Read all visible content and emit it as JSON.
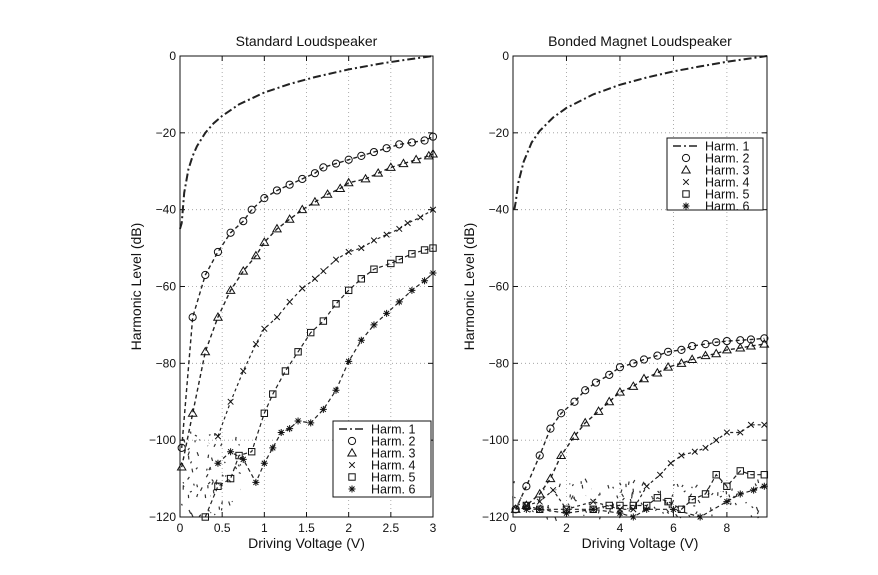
{
  "chart_data": [
    {
      "type": "line",
      "title": "Standard Loudspeaker",
      "xlabel": "Driving Voltage (V)",
      "ylabel": "Harmonic Level (dB)",
      "xlim": [
        0,
        3
      ],
      "ylim": [
        -120,
        0
      ],
      "xticks": [
        0,
        0.5,
        1,
        1.5,
        2,
        2.5,
        3
      ],
      "xtick_labels": [
        "0",
        "0.5",
        "1",
        "1.5",
        "2",
        "2.5",
        "3"
      ],
      "yticks": [
        0,
        -20,
        -40,
        -60,
        -80,
        -100,
        -120
      ],
      "ytick_labels": [
        "0",
        "−20",
        "−40",
        "−60",
        "−80",
        "−100",
        "−120"
      ],
      "grid": true,
      "legend_position": "bottom-right",
      "series": [
        {
          "name": "Harm. 1",
          "marker": "none",
          "x": [
            0.0,
            0.02,
            0.05,
            0.1,
            0.15,
            0.2,
            0.3,
            0.4,
            0.5,
            0.7,
            1.0,
            1.3,
            1.6,
            2.0,
            2.4,
            2.7,
            3.0
          ],
          "y": [
            -45,
            -43.5,
            -35.6,
            -29.5,
            -26,
            -23.5,
            -20,
            -17.5,
            -15.6,
            -12.6,
            -9.5,
            -7.3,
            -5.5,
            -3.5,
            -1.9,
            -0.9,
            0
          ]
        },
        {
          "name": "Harm. 2",
          "marker": "circle",
          "x": [
            0.02,
            0.15,
            0.3,
            0.45,
            0.6,
            0.75,
            0.85,
            1.0,
            1.15,
            1.3,
            1.45,
            1.6,
            1.7,
            1.85,
            2.0,
            2.15,
            2.3,
            2.45,
            2.6,
            2.75,
            2.9,
            3.0
          ],
          "y": [
            -102,
            -68,
            -57,
            -51,
            -46,
            -43,
            -40,
            -37,
            -35,
            -33.5,
            -32,
            -30.5,
            -29,
            -28,
            -27,
            -26,
            -25,
            -24,
            -23,
            -22.5,
            -22,
            -21
          ]
        },
        {
          "name": "Harm. 3",
          "marker": "triangle",
          "x": [
            0.02,
            0.15,
            0.3,
            0.45,
            0.6,
            0.75,
            0.9,
            1.0,
            1.15,
            1.3,
            1.45,
            1.6,
            1.75,
            1.9,
            2.0,
            2.2,
            2.35,
            2.5,
            2.65,
            2.8,
            2.95,
            3.0
          ],
          "y": [
            -107,
            -93,
            -77,
            -68,
            -61,
            -56,
            -52,
            -48.5,
            -45,
            -42.5,
            -40,
            -38,
            -36,
            -34.5,
            -33,
            -32,
            -30.5,
            -29,
            -28,
            -27,
            -26,
            -25.5
          ]
        },
        {
          "name": "Harm. 4",
          "marker": "x",
          "x": [
            0.45,
            0.6,
            0.75,
            0.9,
            1.0,
            1.15,
            1.3,
            1.45,
            1.6,
            1.7,
            1.85,
            2.0,
            2.15,
            2.3,
            2.45,
            2.6,
            2.7,
            2.85,
            3.0
          ],
          "y": [
            -99,
            -90,
            -82,
            -75,
            -71,
            -68,
            -64,
            -60.5,
            -58,
            -56,
            -53,
            -51,
            -50,
            -48,
            -46.5,
            -45,
            -43.5,
            -42,
            -40
          ]
        },
        {
          "name": "Harm. 5",
          "marker": "square",
          "x": [
            0.3,
            0.45,
            0.6,
            0.7,
            0.85,
            1.0,
            1.1,
            1.25,
            1.4,
            1.55,
            1.7,
            1.85,
            2.0,
            2.15,
            2.3,
            2.5,
            2.6,
            2.75,
            2.9,
            3.0
          ],
          "y": [
            -120,
            -112,
            -110,
            -104,
            -103,
            -93,
            -88,
            -82,
            -77,
            -72,
            -69,
            -64.5,
            -61,
            -58,
            -55.5,
            -54,
            -53,
            -51.5,
            -50.5,
            -50
          ]
        },
        {
          "name": "Harm. 6",
          "marker": "asterisk",
          "x": [
            0.45,
            0.6,
            0.75,
            0.9,
            1.0,
            1.1,
            1.2,
            1.3,
            1.4,
            1.55,
            1.7,
            1.85,
            2.0,
            2.15,
            2.3,
            2.45,
            2.6,
            2.75,
            2.9,
            3.0
          ],
          "y": [
            -106,
            -103,
            -105,
            -111,
            -106,
            -102,
            -98,
            -97,
            -95,
            -95.5,
            -92,
            -87,
            -79.5,
            -74,
            -70,
            -67,
            -64,
            -61,
            -58.5,
            -56.5
          ]
        }
      ]
    },
    {
      "type": "line",
      "title": "Bonded Magnet Loudspeaker",
      "xlabel": "Driving Voltage (V)",
      "ylabel": "Harmonic Level (dB)",
      "xlim": [
        0,
        9.5
      ],
      "ylim": [
        -120,
        0
      ],
      "xticks": [
        0,
        2,
        4,
        6,
        8
      ],
      "xtick_labels": [
        "0",
        "2",
        "4",
        "6",
        "8"
      ],
      "yticks": [
        0,
        -20,
        -40,
        -60,
        -80,
        -100,
        -120
      ],
      "ytick_labels": [
        "0",
        "−20",
        "−40",
        "−60",
        "−80",
        "−100",
        "−120"
      ],
      "grid": true,
      "legend_position": "top-right",
      "series": [
        {
          "name": "Harm. 1",
          "marker": "none",
          "x": [
            0.05,
            0.1,
            0.2,
            0.4,
            0.7,
            1.0,
            1.5,
            2.0,
            3.0,
            4.0,
            5.0,
            6.0,
            7.0,
            8.0,
            9.0,
            9.5
          ],
          "y": [
            -40,
            -38,
            -33,
            -27.5,
            -22.5,
            -19.5,
            -16,
            -13.5,
            -10,
            -7.5,
            -5.6,
            -4,
            -2.7,
            -1.5,
            -0.5,
            0
          ]
        },
        {
          "name": "Harm. 2",
          "marker": "circle",
          "x": [
            0.1,
            0.5,
            1.0,
            1.4,
            1.8,
            2.3,
            2.7,
            3.1,
            3.6,
            4.0,
            4.5,
            4.9,
            5.4,
            5.8,
            6.3,
            6.7,
            7.2,
            7.6,
            8.0,
            8.5,
            8.9,
            9.4
          ],
          "y": [
            -118,
            -112,
            -104,
            -97,
            -93,
            -90,
            -87,
            -85,
            -83,
            -81,
            -80,
            -79,
            -78,
            -77,
            -76.5,
            -75.5,
            -75,
            -74.5,
            -74.2,
            -74,
            -73.8,
            -73.5
          ]
        },
        {
          "name": "Harm. 3",
          "marker": "triangle",
          "x": [
            0.1,
            0.5,
            1.0,
            1.4,
            1.8,
            2.3,
            2.7,
            3.2,
            3.6,
            4.0,
            4.5,
            4.9,
            5.4,
            5.8,
            6.3,
            6.7,
            7.2,
            7.6,
            8.0,
            8.5,
            8.9,
            9.4
          ],
          "y": [
            -118,
            -117,
            -114,
            -110,
            -104,
            -99,
            -95.5,
            -92.5,
            -90,
            -87.5,
            -86,
            -84,
            -82.5,
            -81,
            -80,
            -79,
            -78,
            -77.5,
            -76.5,
            -76,
            -75.5,
            -75
          ]
        },
        {
          "name": "Harm. 4",
          "marker": "x",
          "x": [
            0.5,
            1.0,
            1.5,
            2.0,
            3.0,
            4.0,
            4.5,
            5.0,
            5.5,
            5.9,
            6.3,
            6.8,
            7.2,
            7.6,
            8.0,
            8.5,
            8.9,
            9.4
          ],
          "y": [
            -117,
            -116,
            -113,
            -118,
            -116,
            -118,
            -118,
            -112,
            -109,
            -106,
            -104,
            -103,
            -102,
            -100,
            -98,
            -98,
            -96,
            -96
          ]
        },
        {
          "name": "Harm. 5",
          "marker": "square",
          "x": [
            0.5,
            1.0,
            2.0,
            3.0,
            3.6,
            4.0,
            4.5,
            5.0,
            5.4,
            5.8,
            6.3,
            6.7,
            7.2,
            7.6,
            8.0,
            8.5,
            8.9,
            9.4
          ],
          "y": [
            -117,
            -118,
            -118,
            -118,
            -117,
            -117,
            -117,
            -117,
            -115,
            -116,
            -118,
            -115.5,
            -114,
            -109,
            -112,
            -108,
            -109,
            -109
          ]
        },
        {
          "name": "Harm. 6",
          "marker": "asterisk",
          "x": [
            0.5,
            1.0,
            2.0,
            3.0,
            4.0,
            4.5,
            5.0,
            6.0,
            7.0,
            8.0,
            8.5,
            9.0,
            9.4
          ],
          "y": [
            -118,
            -118,
            -119,
            -118,
            -119,
            -120,
            -118,
            -118,
            -120,
            -116,
            -114,
            -113,
            -112
          ]
        }
      ]
    }
  ]
}
